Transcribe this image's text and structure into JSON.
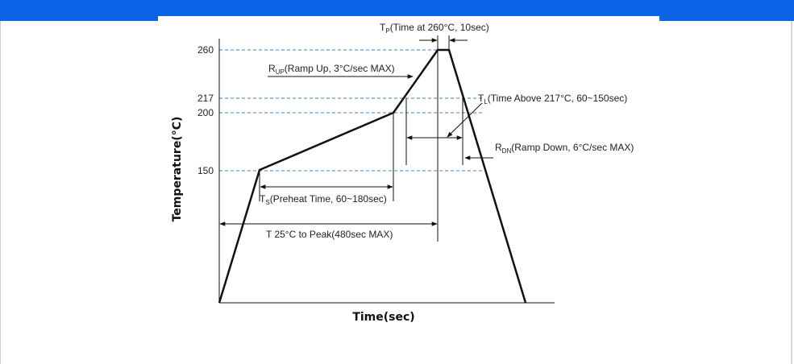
{
  "window": {
    "header_color": "#0a64e8"
  },
  "diagram": {
    "y_axis_title": "Temperature(°C)",
    "x_axis_title": "Time(sec)",
    "y_ticks": [
      "260",
      "217",
      "200",
      "150"
    ],
    "labels": {
      "tp": {
        "main": "T",
        "sub": "P",
        "rest": "(Time at 260°C, 10sec)"
      },
      "rup": {
        "main": "R",
        "sub": "UP",
        "rest": "(Ramp Up, 3°C/sec MAX)"
      },
      "tl": {
        "main": "T",
        "sub": "L",
        "rest": "(Time Above 217°C, 60~150sec)"
      },
      "rdn": {
        "main": "R",
        "sub": "DN",
        "rest": "(Ramp Down, 6°C/sec MAX)"
      },
      "ts": {
        "main": "T",
        "sub": "S",
        "rest": "(Preheat Time, 60~180sec)"
      },
      "t25": "T 25°C to Peak(480sec MAX)"
    },
    "colors": {
      "guide_line": "#3a7fd5",
      "profile": "#111111"
    }
  }
}
